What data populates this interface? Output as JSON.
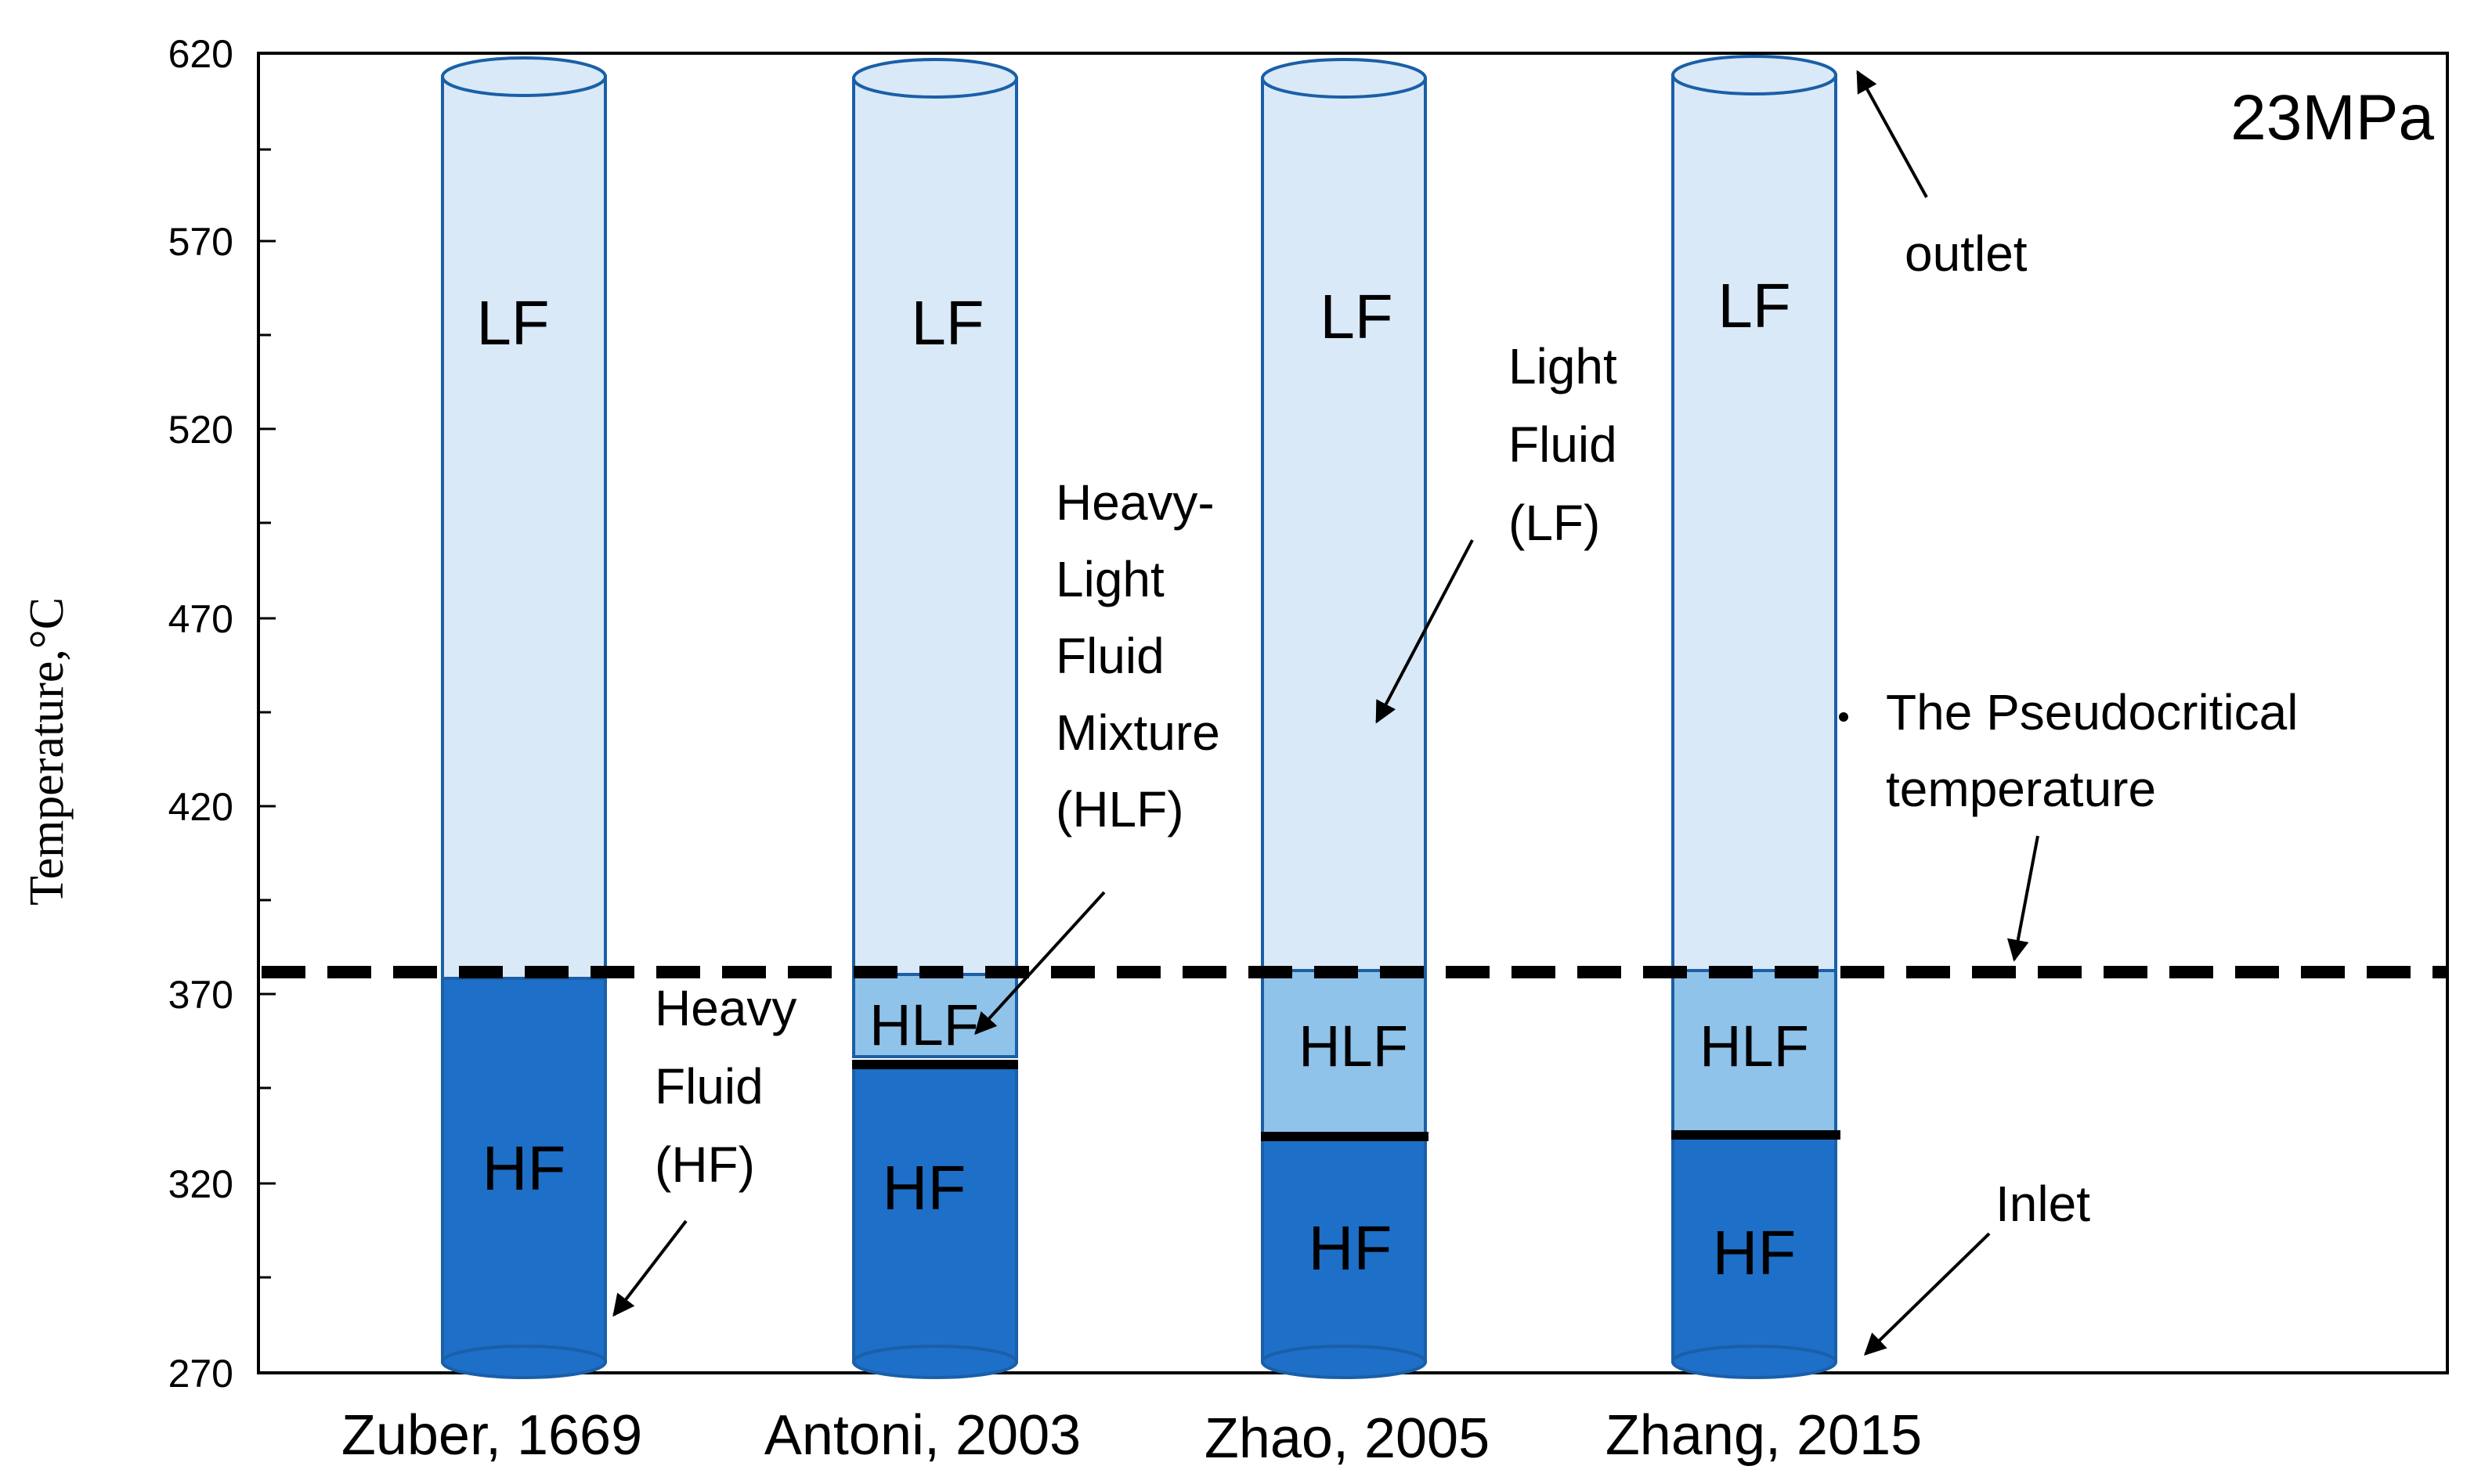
{
  "pressure_label": "23MPa",
  "axis": {
    "ylabel": "Temperature,°C",
    "ticks": [
      "620",
      "570",
      "520",
      "470",
      "420",
      "370",
      "320",
      "270"
    ]
  },
  "columns": [
    {
      "author": "Zuber, 1669",
      "upper_label": "LF",
      "middle_label": "",
      "lower_label": "HF"
    },
    {
      "author": "Antoni, 2003",
      "upper_label": "LF",
      "middle_label": "HLF",
      "lower_label": "HF"
    },
    {
      "author": "Zhao, 2005",
      "upper_label": "LF",
      "middle_label": "HLF",
      "lower_label": "HF"
    },
    {
      "author": "Zhang, 2015",
      "upper_label": "LF",
      "middle_label": "HLF",
      "lower_label": "HF"
    }
  ],
  "annotations": {
    "outlet": "outlet",
    "inlet": "Inlet",
    "light_fluid": [
      "Light",
      "Fluid",
      "(LF)"
    ],
    "heavy_light_mixture": [
      "Heavy-",
      "Light",
      "Fluid",
      "Mixture",
      "(HLF)"
    ],
    "heavy_fluid": [
      "Heavy",
      "Fluid",
      "(HF)"
    ],
    "pseudocritical": [
      "The Pseudocritical",
      "temperature"
    ]
  },
  "colors": {
    "light_fluid": "#dae9f7",
    "mixture": "#8fc3e9",
    "heavy_fluid": "#1e6fc7",
    "outline": "#1a5fa8",
    "pseudocritical_line": "#000000"
  }
}
